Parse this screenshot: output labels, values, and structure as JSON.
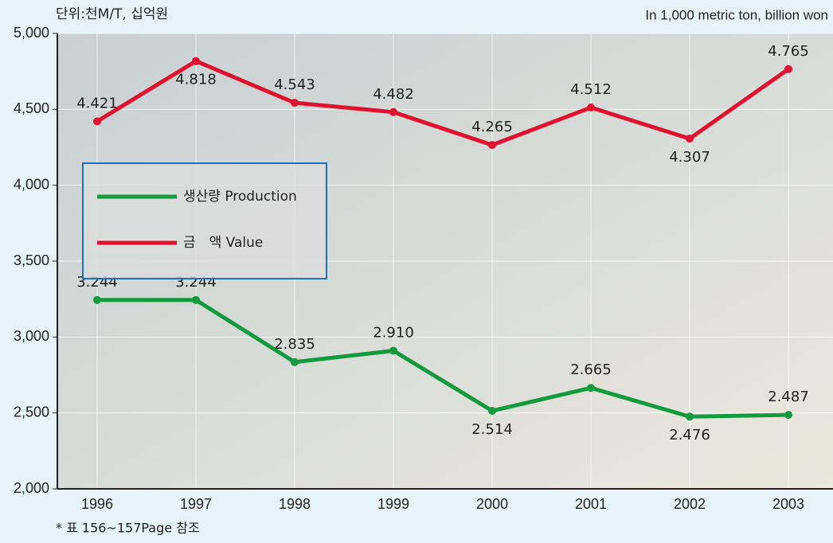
{
  "chart_data": {
    "type": "line",
    "unit_note": "단위:천M/T, 십억원",
    "unit_note_en": "In 1,000 metric ton, billion won",
    "footnote": "* 표 156~157Page 참조",
    "categories": [
      "1996",
      "1997",
      "1998",
      "1999",
      "2000",
      "2001",
      "2002",
      "2003"
    ],
    "series": [
      {
        "name": "생산량 Production",
        "color": "#129a3c",
        "values": [
          3244,
          3244,
          2835,
          2910,
          2514,
          2665,
          2476,
          2487
        ],
        "value_labels": [
          "3.244",
          "3.244",
          "2.835",
          "2.910",
          "2.514",
          "2.665",
          "2.476",
          "2.487"
        ]
      },
      {
        "name": "금　액 Value",
        "color": "#e0102f",
        "values": [
          4421,
          4818,
          4543,
          4482,
          4265,
          4512,
          4307,
          4765
        ],
        "value_labels": [
          "4.421",
          "4.818",
          "4.543",
          "4.482",
          "4.265",
          "4.512",
          "4.307",
          "4.765"
        ]
      }
    ],
    "ylim": [
      2000,
      5000
    ],
    "yticks": [
      {
        "value": 2000,
        "label": "2,000"
      },
      {
        "value": 2500,
        "label": "2,500"
      },
      {
        "value": 3000,
        "label": "3,000"
      },
      {
        "value": 3500,
        "label": "3,500"
      },
      {
        "value": 4000,
        "label": "4,000"
      },
      {
        "value": 4500,
        "label": "4,500"
      },
      {
        "value": 5000,
        "label": "5,000"
      }
    ],
    "grid": true
  }
}
